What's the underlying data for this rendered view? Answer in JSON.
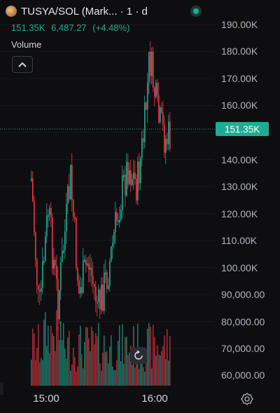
{
  "header": {
    "title": "TUSYA/SOL (Mark... · 1 · d",
    "price": "151.35K",
    "change": "6,487.27",
    "change_pct": "(+4.48%)",
    "volume_label": "Volume"
  },
  "colors": {
    "up": "#22ab94",
    "down": "#f23645",
    "background": "#0e0e10"
  },
  "icons": {
    "coin": "token-avatar-icon",
    "live": "live-status-icon",
    "collapse": "chevron-up-icon",
    "reset": "reset-rotate-icon",
    "settings": "gear-icon"
  },
  "price_axis": {
    "ticks": [
      "190.00K",
      "180.00K",
      "170.00K",
      "160.00K",
      "140.00K",
      "130.00K",
      "120.00K",
      "110.00K",
      "100.00K",
      "90,000.00",
      "80,000.00",
      "70,000.00",
      "60,000.00"
    ],
    "last_price_label": "151.35K"
  },
  "time_axis": {
    "ticks": [
      "15:00",
      "16:00"
    ]
  }
}
